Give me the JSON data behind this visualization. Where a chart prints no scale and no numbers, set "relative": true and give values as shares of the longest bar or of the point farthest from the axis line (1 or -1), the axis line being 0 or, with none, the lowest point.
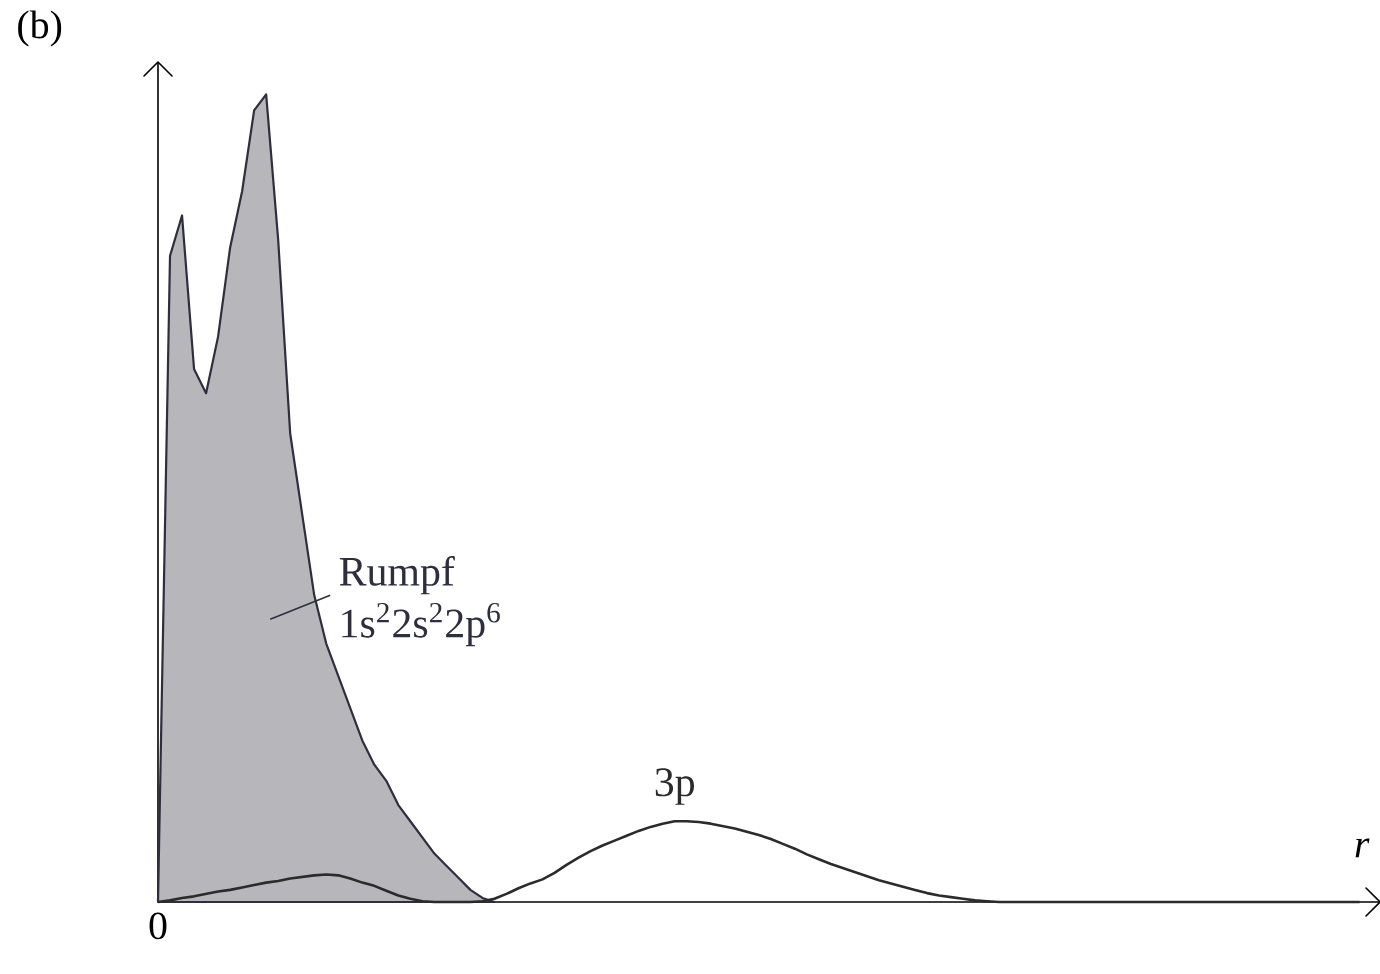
{
  "chart_data": {
    "type": "line",
    "title": "(b)",
    "xlabel": "r",
    "relative": true,
    "annotations": [
      "0"
    ],
    "categories": [
      null,
      null,
      null,
      null,
      null,
      null,
      null,
      null,
      null,
      null,
      null,
      null,
      null,
      null,
      null,
      null,
      null,
      null,
      null,
      null,
      null,
      null,
      null,
      null,
      null,
      null,
      null,
      null,
      null,
      null,
      null,
      null,
      null,
      null,
      null,
      null,
      null,
      null,
      null,
      null,
      null,
      null,
      null,
      null,
      null,
      null,
      null,
      null,
      null,
      null,
      null,
      null,
      null,
      null,
      null,
      null,
      null,
      null,
      null,
      null,
      null,
      null,
      null,
      null,
      null,
      null,
      null,
      null,
      null,
      null,
      null,
      null,
      null,
      null,
      null,
      null,
      null,
      null,
      null,
      null,
      null,
      null,
      null,
      null,
      null,
      null,
      null,
      null,
      null,
      null,
      null,
      null,
      null,
      null,
      null,
      null,
      null,
      null,
      null,
      null,
      null
    ],
    "series": [
      {
        "name": "Rumpf 1s$^{2}$2s$^{2}$2p$^{6}$",
        "type": "area",
        "color": "#2e2e3e",
        "values": [
          0,
          0.8,
          0.85,
          0.66,
          0.63,
          0.7,
          0.81,
          0.88,
          0.98,
          1,
          0.82,
          0.58,
          0.48,
          0.38,
          0.32,
          0.28,
          0.24,
          0.2,
          0.17,
          0.15,
          0.12,
          0.1,
          0.08,
          0.06,
          0.045,
          0.03,
          0.015,
          0.005,
          0,
          null,
          null,
          null,
          null,
          null,
          null,
          null,
          null,
          null,
          null,
          null,
          null,
          null,
          null,
          null,
          null,
          null,
          null,
          null,
          null,
          null,
          null,
          null,
          null,
          null,
          null,
          null,
          null,
          null,
          null,
          null,
          null,
          null,
          null,
          null,
          null,
          null,
          null,
          null,
          null,
          null,
          null,
          null,
          null,
          null,
          null,
          null,
          null,
          null,
          null,
          null,
          null,
          null,
          null,
          null,
          null,
          null,
          null,
          null,
          null,
          null,
          null,
          null,
          null,
          null,
          null,
          null,
          null,
          null,
          null,
          null,
          null
        ]
      },
      {
        "name": "3p",
        "color": "#2b2b2b",
        "values": [
          0,
          0.002,
          0.005,
          0.007,
          0.01,
          0.013,
          0.015,
          0.018,
          0.021,
          0.024,
          0.026,
          0.029,
          0.031,
          0.033,
          0.034,
          0.033,
          0.029,
          0.024,
          0.02,
          0.014,
          0.008,
          0.004,
          0.001,
          0,
          0,
          0,
          0,
          0.001,
          0.004,
          0.01,
          0.017,
          0.023,
          0.028,
          0.036,
          0.046,
          0.055,
          0.063,
          0.07,
          0.076,
          0.082,
          0.088,
          0.093,
          0.097,
          0.1,
          0.1,
          0.099,
          0.097,
          0.094,
          0.091,
          0.087,
          0.083,
          0.078,
          0.072,
          0.066,
          0.059,
          0.053,
          0.047,
          0.042,
          0.037,
          0.032,
          0.027,
          0.023,
          0.019,
          0.015,
          0.011,
          0.008,
          0.006,
          0.004,
          0.002,
          0.001,
          0,
          0,
          0,
          0,
          0,
          0,
          0,
          0,
          0,
          0,
          0,
          0,
          0,
          0,
          0,
          0,
          0,
          0,
          0,
          0,
          0,
          0,
          0,
          0,
          0,
          0,
          0,
          0,
          0,
          0,
          0
        ]
      }
    ]
  }
}
